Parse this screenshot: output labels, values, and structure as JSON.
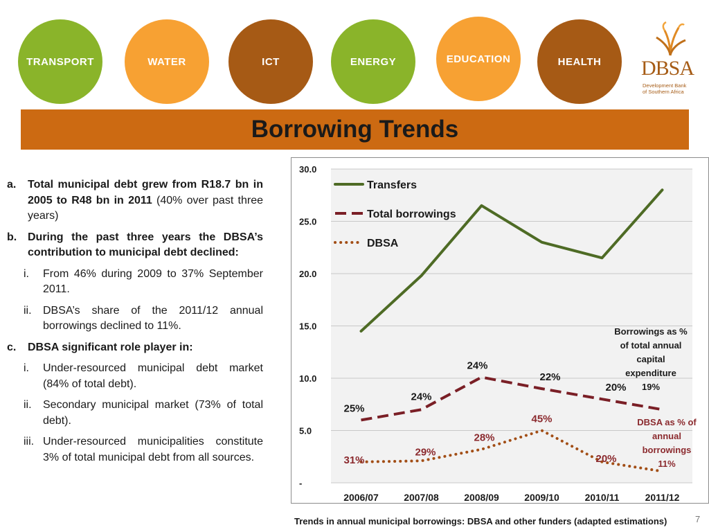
{
  "sectors": [
    {
      "label": "TRANSPORT",
      "color": "#8ab42a"
    },
    {
      "label": "WATER",
      "color": "#f7a133"
    },
    {
      "label": "ICT",
      "color": "#a65a15"
    },
    {
      "label": "ENERGY",
      "color": "#8ab42a"
    },
    {
      "label": "EDUCATION",
      "color": "#f7a133"
    },
    {
      "label": "HEALTH",
      "color": "#a65a15"
    }
  ],
  "logo": {
    "brand": "DBSA",
    "subtitle_line1": "Development Bank",
    "subtitle_line2": "of Southern Africa"
  },
  "title": "Borrowing Trends",
  "points": {
    "a": {
      "marker": "a.",
      "bold": "Total  municipal debt grew from R18.7 bn in 2005 to R48 bn in 2011",
      "rest": " (40% over past three years)"
    },
    "b": {
      "marker": "b.",
      "bold": "During the past three years the DBSA’s contribution to municipal debt declined:",
      "subs": [
        {
          "marker": "i.",
          "text": "From 46% during 2009 to 37% September 2011."
        },
        {
          "marker": "ii.",
          "text": "DBSA’s share of the 2011/12 annual borrowings declined to  11%."
        }
      ]
    },
    "c": {
      "marker": "c.",
      "bold": "DBSA significant role player in:",
      "subs": [
        {
          "marker": "i.",
          "text": "Under-resourced municipal debt market (84% of total debt)."
        },
        {
          "marker": "ii.",
          "text": "Secondary municipal market (73% of total debt)."
        },
        {
          "marker": "iii.",
          "text": "Under-resourced municipalities constitute 3% of total municipal debt from all sources."
        }
      ]
    }
  },
  "chart_data": {
    "type": "line",
    "categories": [
      "2006/07",
      "2007/08",
      "2008/09",
      "2009/10",
      "2010/11",
      "2011/12"
    ],
    "ylim": [
      0,
      30
    ],
    "y_ticks": [
      "-",
      "5.0",
      "10.0",
      "15.0",
      "20.0",
      "25.0",
      "30.0"
    ],
    "grid": true,
    "legend_position": "top-left",
    "series": [
      {
        "name": "Transfers",
        "style": "solid",
        "color": "#4e6b25",
        "values": [
          14.5,
          19.8,
          26.5,
          23.0,
          21.5,
          28.0
        ],
        "labels": []
      },
      {
        "name": "Total borrowings",
        "style": "dashed",
        "color": "#7a1f26",
        "values": [
          6.0,
          7.0,
          10.1,
          9.0,
          8.0,
          7.0
        ],
        "labels": [
          "25%",
          "24%",
          "24%",
          "22%",
          "20%",
          ""
        ]
      },
      {
        "name": "DBSA",
        "style": "dotted",
        "color": "#a24e16",
        "values": [
          2.0,
          2.1,
          3.2,
          5.0,
          2.0,
          1.1
        ],
        "labels": [
          "31%",
          "29%",
          "28%",
          "45%",
          "20%",
          ""
        ]
      }
    ],
    "annotations": [
      {
        "text": "Borrowings as % of total annual capital expenditure",
        "value": "19%"
      },
      {
        "text": "DBSA as % of annual borrowings",
        "value": "11%"
      }
    ]
  },
  "caption": "Trends in annual municipal borrowings: DBSA and other funders (adapted estimations)",
  "page_number": "7"
}
